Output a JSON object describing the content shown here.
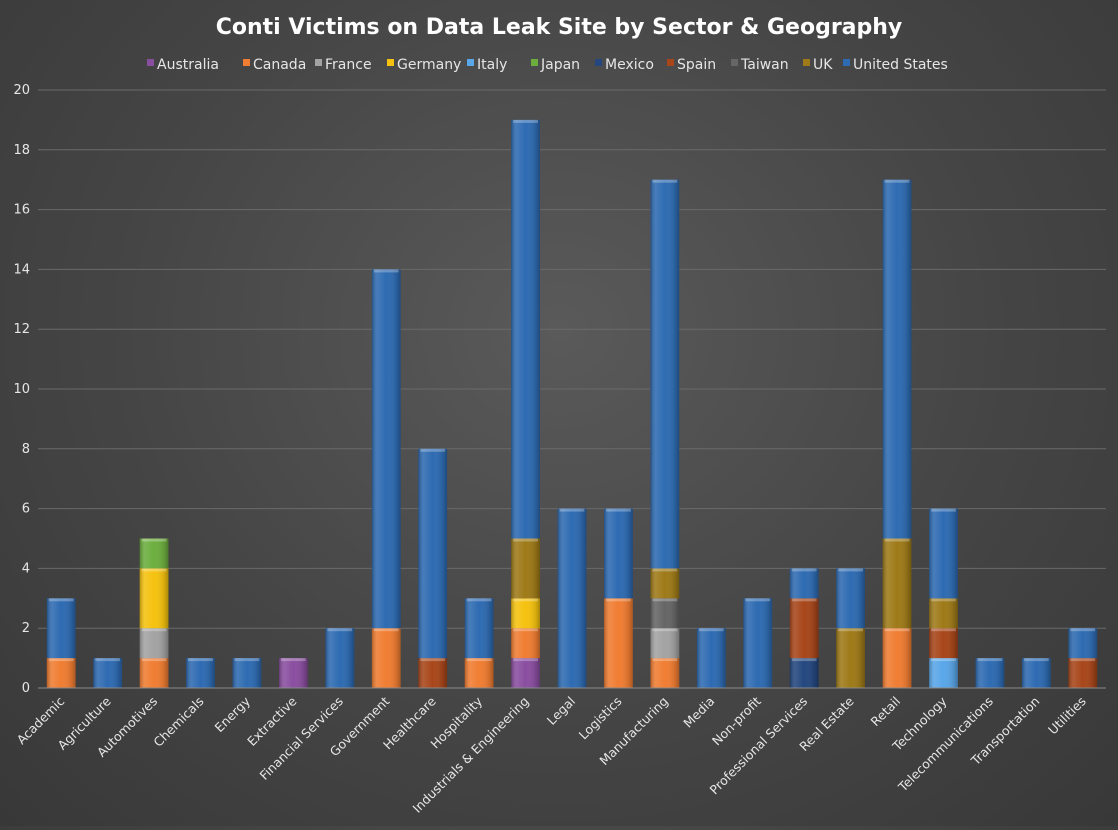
{
  "chart_data": {
    "type": "bar",
    "stacked": true,
    "title": "Conti Victims on Data Leak Site by Sector & Geography",
    "legend_position": "top",
    "grid": true,
    "ylim": [
      0,
      20
    ],
    "yticks": [
      0,
      2,
      4,
      6,
      8,
      10,
      12,
      14,
      16,
      18,
      20
    ],
    "categories": [
      "Academic",
      "Agriculture",
      "Automotives",
      "Chemicals",
      "Energy",
      "Extractive",
      "Financial Services",
      "Government",
      "Healthcare",
      "Hospitality",
      "Industrials & Engineering",
      "Legal",
      "Logistics",
      "Manufacturing",
      "Media",
      "Non-profit",
      "Professional Services",
      "Real Estate",
      "Retail",
      "Technology",
      "Telecommunications",
      "Transportation",
      "Utilities"
    ],
    "series": [
      {
        "name": "Australia",
        "color": "#8a4ea0",
        "values": [
          0,
          0,
          0,
          0,
          0,
          1,
          0,
          0,
          0,
          0,
          1,
          0,
          0,
          0,
          0,
          0,
          0,
          0,
          0,
          0,
          0,
          0,
          0
        ]
      },
      {
        "name": "Canada",
        "color": "#f07d32",
        "values": [
          1,
          0,
          1,
          0,
          0,
          0,
          0,
          2,
          0,
          1,
          1,
          0,
          3,
          1,
          0,
          0,
          0,
          0,
          2,
          0,
          0,
          0,
          0
        ]
      },
      {
        "name": "France",
        "color": "#a3a3a3",
        "values": [
          0,
          0,
          1,
          0,
          0,
          0,
          0,
          0,
          0,
          0,
          0,
          0,
          0,
          1,
          0,
          0,
          0,
          0,
          0,
          0,
          0,
          0,
          0
        ]
      },
      {
        "name": "Germany",
        "color": "#f5c20f",
        "values": [
          0,
          0,
          2,
          0,
          0,
          0,
          0,
          0,
          0,
          0,
          1,
          0,
          0,
          0,
          0,
          0,
          0,
          0,
          0,
          0,
          0,
          0,
          0
        ]
      },
      {
        "name": "Italy",
        "color": "#59a6e8",
        "values": [
          0,
          0,
          0,
          0,
          0,
          0,
          0,
          0,
          0,
          0,
          0,
          0,
          0,
          0,
          0,
          0,
          0,
          0,
          0,
          1,
          0,
          0,
          0
        ]
      },
      {
        "name": "Japan",
        "color": "#6cae3e",
        "values": [
          0,
          0,
          1,
          0,
          0,
          0,
          0,
          0,
          0,
          0,
          0,
          0,
          0,
          0,
          0,
          0,
          0,
          0,
          0,
          0,
          0,
          0,
          0
        ]
      },
      {
        "name": "Mexico",
        "color": "#24477f",
        "values": [
          0,
          0,
          0,
          0,
          0,
          0,
          0,
          0,
          0,
          0,
          0,
          0,
          0,
          0,
          0,
          0,
          1,
          0,
          0,
          0,
          0,
          0,
          0
        ]
      },
      {
        "name": "Spain",
        "color": "#a8461a",
        "values": [
          0,
          0,
          0,
          0,
          0,
          0,
          0,
          0,
          1,
          0,
          0,
          0,
          0,
          0,
          0,
          0,
          2,
          0,
          0,
          1,
          0,
          0,
          1
        ]
      },
      {
        "name": "Taiwan",
        "color": "#666666",
        "values": [
          0,
          0,
          0,
          0,
          0,
          0,
          0,
          0,
          0,
          0,
          0,
          0,
          0,
          1,
          0,
          0,
          0,
          0,
          0,
          0,
          0,
          0,
          0
        ]
      },
      {
        "name": "UK",
        "color": "#9e7a18",
        "values": [
          0,
          0,
          0,
          0,
          0,
          0,
          0,
          0,
          0,
          0,
          2,
          0,
          0,
          1,
          0,
          0,
          0,
          2,
          3,
          1,
          0,
          0,
          0
        ]
      },
      {
        "name": "United States",
        "color": "#2e6bb2",
        "values": [
          2,
          1,
          0,
          1,
          1,
          0,
          2,
          12,
          7,
          2,
          14,
          6,
          3,
          13,
          2,
          3,
          1,
          2,
          12,
          3,
          1,
          1,
          1
        ]
      }
    ]
  }
}
